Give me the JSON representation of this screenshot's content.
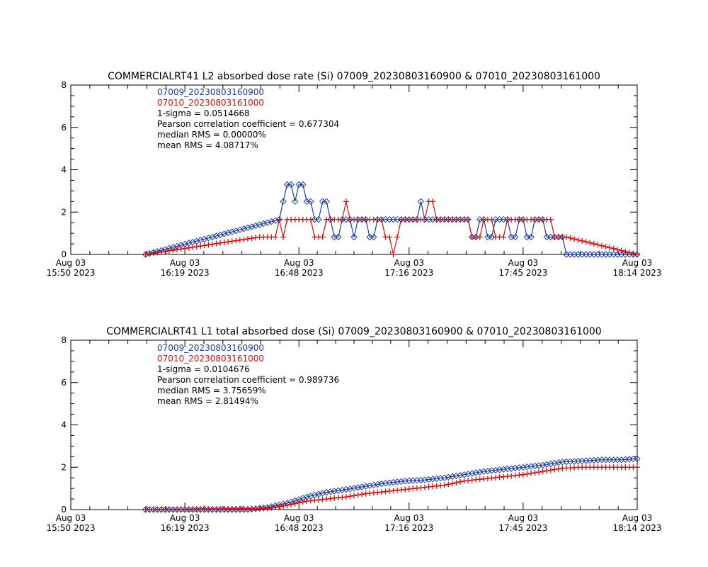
{
  "colors": {
    "series_a": "#1f3d99",
    "series_b": "#cc1111",
    "axis": "#000000",
    "text": "#000000"
  },
  "chart_data": [
    {
      "type": "line",
      "title": "COMMERCIALRT41 L2 absorbed dose rate (Si) 07009_20230803160900 & 07010_20230803161000",
      "xlabel": "",
      "ylabel": "",
      "x_time_range": [
        "2023-08-03 15:50",
        "2023-08-03 18:14"
      ],
      "ylim": [
        0,
        8
      ],
      "yticks": [
        "0",
        "2",
        "4",
        "6",
        "8"
      ],
      "xticks": [
        {
          "l1": "Aug 03",
          "l2": "15:50 2023",
          "t": "15:50"
        },
        {
          "l1": "Aug 03",
          "l2": "16:19 2023",
          "t": "16:19"
        },
        {
          "l1": "Aug 03",
          "l2": "16:48 2023",
          "t": "16:48"
        },
        {
          "l1": "Aug 03",
          "l2": "17:16 2023",
          "t": "17:16"
        },
        {
          "l1": "Aug 03",
          "l2": "17:45 2023",
          "t": "17:45"
        },
        {
          "l1": "Aug 03",
          "l2": "18:14 2023",
          "t": "18:14"
        }
      ],
      "annotations": [
        "07009_20230803160900",
        "07010_20230803161000",
        "1-sigma = 0.0514668",
        "Pearson correlation coefficient = 0.677304",
        "median RMS = 0.00000%",
        "mean RMS = 4.08717%"
      ],
      "series": [
        {
          "name": "07009_20230803160900",
          "marker": "diamond",
          "time": [
            "16:09",
            "16:43",
            "16:44",
            "16:45",
            "16:46",
            "16:47",
            "16:48",
            "16:49",
            "16:50",
            "16:51",
            "16:52",
            "16:53",
            "16:54",
            "16:55",
            "16:56",
            "16:57",
            "16:58",
            "16:59",
            "17:00",
            "17:01",
            "17:02",
            "17:03",
            "17:04",
            "17:05",
            "17:06",
            "17:07",
            "17:08",
            "17:09",
            "17:10",
            "17:11",
            "17:12",
            "17:13",
            "17:14",
            "17:15",
            "17:16",
            "17:17",
            "17:18",
            "17:19",
            "17:20",
            "17:21",
            "17:22",
            "17:23",
            "17:24",
            "17:25",
            "17:26",
            "17:27",
            "17:28",
            "17:29",
            "17:30",
            "17:31",
            "17:32",
            "17:33",
            "17:34",
            "17:35",
            "17:36",
            "17:37",
            "17:38",
            "17:39",
            "17:40",
            "17:41",
            "17:42",
            "17:43",
            "17:44",
            "17:45",
            "17:46",
            "17:47",
            "17:48",
            "17:49",
            "17:50",
            "17:51",
            "17:52",
            "17:53",
            "17:54",
            "17:55",
            "17:56",
            "17:57",
            "17:58",
            "17:59",
            "18:14"
          ],
          "values": [
            0,
            1.65,
            2.5,
            3.3,
            3.3,
            2.5,
            3.3,
            3.3,
            2.5,
            2.5,
            1.65,
            1.65,
            2.5,
            2.5,
            1.65,
            0.82,
            0.82,
            1.65,
            1.65,
            1.65,
            0.82,
            1.65,
            1.65,
            1.65,
            0.82,
            0.82,
            1.65,
            1.65,
            1.65,
            1.65,
            1.65,
            1.65,
            1.65,
            1.65,
            1.65,
            1.65,
            1.65,
            2.5,
            1.65,
            1.65,
            1.65,
            1.65,
            1.65,
            1.65,
            1.65,
            1.65,
            1.65,
            1.65,
            1.65,
            1.65,
            0.82,
            0.82,
            1.65,
            1.65,
            0.82,
            0.82,
            1.65,
            1.65,
            1.65,
            1.65,
            0.82,
            0.82,
            1.65,
            1.65,
            0.82,
            0.82,
            1.65,
            1.65,
            1.65,
            0.82,
            0.82,
            0.82,
            0.82,
            0.82,
            0,
            0,
            0,
            0,
            0
          ]
        },
        {
          "name": "07010_20230803161000",
          "marker": "plus",
          "time": [
            "16:09",
            "16:38",
            "16:39",
            "16:40",
            "16:41",
            "16:42",
            "16:43",
            "16:44",
            "16:45",
            "16:46",
            "16:47",
            "16:48",
            "16:49",
            "16:50",
            "16:51",
            "16:52",
            "16:53",
            "16:54",
            "16:55",
            "16:56",
            "16:57",
            "16:58",
            "16:59",
            "17:00",
            "17:01",
            "17:02",
            "17:03",
            "17:04",
            "17:05",
            "17:06",
            "17:07",
            "17:08",
            "17:09",
            "17:10",
            "17:11",
            "17:12",
            "17:13",
            "17:14",
            "17:15",
            "17:16",
            "17:17",
            "17:18",
            "17:19",
            "17:20",
            "17:21",
            "17:22",
            "17:23",
            "17:24",
            "17:25",
            "17:26",
            "17:27",
            "17:28",
            "17:29",
            "17:30",
            "17:31",
            "17:32",
            "17:33",
            "17:34",
            "17:35",
            "17:36",
            "17:37",
            "17:38",
            "17:39",
            "17:40",
            "17:41",
            "17:42",
            "17:43",
            "17:44",
            "17:45",
            "17:46",
            "17:47",
            "17:48",
            "17:49",
            "17:50",
            "17:51",
            "17:52",
            "17:53",
            "17:54",
            "17:55",
            "17:56",
            "18:14"
          ],
          "values": [
            0,
            0.82,
            0.82,
            0.82,
            0.82,
            0.82,
            1.65,
            0.82,
            1.65,
            1.65,
            1.65,
            1.65,
            1.65,
            1.65,
            1.65,
            0.82,
            0.82,
            0.82,
            1.65,
            1.65,
            1.65,
            1.65,
            1.65,
            2.5,
            1.65,
            1.65,
            1.65,
            1.65,
            1.65,
            1.65,
            1.65,
            1.65,
            1.65,
            0.82,
            0.82,
            0,
            0.82,
            1.65,
            1.65,
            1.65,
            1.65,
            1.65,
            1.65,
            1.65,
            2.5,
            2.5,
            1.65,
            1.65,
            1.65,
            1.65,
            1.65,
            1.65,
            1.65,
            1.65,
            1.65,
            0.82,
            0.82,
            0.82,
            1.65,
            1.65,
            1.65,
            0.82,
            0.82,
            0.82,
            1.65,
            1.65,
            1.65,
            1.65,
            1.65,
            1.65,
            1.65,
            1.65,
            1.65,
            1.65,
            1.65,
            1.65,
            0.82,
            0.82,
            0.82,
            0.82,
            0
          ]
        }
      ]
    },
    {
      "type": "line",
      "title": "COMMERCIALRT41 L1 total absorbed dose (Si) 07009_20230803160900 & 07010_20230803161000",
      "xlabel": "",
      "ylabel": "",
      "x_time_range": [
        "2023-08-03 15:50",
        "2023-08-03 18:14"
      ],
      "ylim": [
        0,
        8
      ],
      "yticks": [
        "0",
        "2",
        "4",
        "6",
        "8"
      ],
      "xticks": [
        {
          "l1": "Aug 03",
          "l2": "15:50 2023",
          "t": "15:50"
        },
        {
          "l1": "Aug 03",
          "l2": "16:19 2023",
          "t": "16:19"
        },
        {
          "l1": "Aug 03",
          "l2": "16:48 2023",
          "t": "16:48"
        },
        {
          "l1": "Aug 03",
          "l2": "17:16 2023",
          "t": "17:16"
        },
        {
          "l1": "Aug 03",
          "l2": "17:45 2023",
          "t": "17:45"
        },
        {
          "l1": "Aug 03",
          "l2": "18:14 2023",
          "t": "18:14"
        }
      ],
      "annotations": [
        "07009_20230803160900",
        "07010_20230803161000",
        "1-sigma = 0.0104676",
        "Pearson correlation coefficient = 0.989736",
        "median RMS = 3.75659%",
        "mean RMS = 2.81494%"
      ],
      "series": [
        {
          "name": "07009_20230803160900",
          "marker": "diamond",
          "time": [
            "16:09",
            "16:35",
            "16:40",
            "16:45",
            "16:50",
            "16:55",
            "17:00",
            "17:05",
            "17:10",
            "17:15",
            "17:20",
            "17:25",
            "17:30",
            "17:35",
            "17:40",
            "17:45",
            "17:50",
            "17:55",
            "18:00",
            "18:05",
            "18:10",
            "18:14"
          ],
          "values": [
            0,
            0,
            0.1,
            0.3,
            0.6,
            0.82,
            0.95,
            1.1,
            1.25,
            1.35,
            1.4,
            1.5,
            1.65,
            1.8,
            1.9,
            2.0,
            2.1,
            2.25,
            2.3,
            2.35,
            2.35,
            2.4
          ]
        },
        {
          "name": "07010_20230803161000",
          "marker": "plus",
          "time": [
            "16:09",
            "16:40",
            "16:45",
            "16:50",
            "16:55",
            "17:00",
            "17:05",
            "17:10",
            "17:15",
            "17:20",
            "17:25",
            "17:30",
            "17:35",
            "17:40",
            "17:45",
            "17:50",
            "17:55",
            "18:00",
            "18:05",
            "18:10",
            "18:14"
          ],
          "values": [
            0,
            0.05,
            0.2,
            0.4,
            0.5,
            0.6,
            0.75,
            0.85,
            0.95,
            1.05,
            1.15,
            1.35,
            1.45,
            1.55,
            1.65,
            1.8,
            1.95,
            2.0,
            2.0,
            2.0,
            2.0
          ]
        }
      ]
    }
  ]
}
